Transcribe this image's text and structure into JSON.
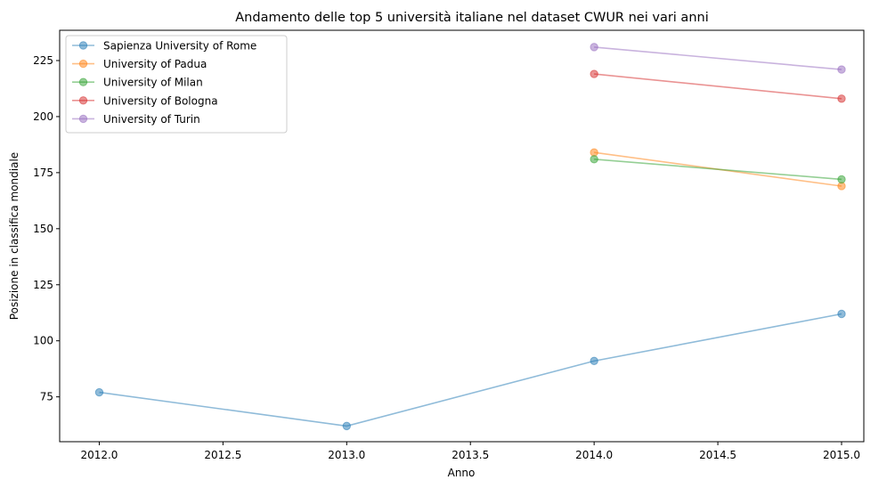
{
  "chart_data": {
    "type": "line",
    "title": "Andamento delle top 5 università italiane nel dataset CWUR nei vari anni",
    "xlabel": "Anno",
    "ylabel": "Posizione in classifica mondiale",
    "xlim": [
      2011.84,
      2015.09
    ],
    "ylim": [
      55.0,
      238.5
    ],
    "xticks": [
      2012.0,
      2012.5,
      2013.0,
      2013.5,
      2014.0,
      2014.5,
      2015.0
    ],
    "xtick_labels": [
      "2012.0",
      "2012.5",
      "2013.0",
      "2013.5",
      "2014.0",
      "2014.5",
      "2015.0"
    ],
    "yticks": [
      75,
      100,
      125,
      150,
      175,
      200,
      225
    ],
    "ytick_labels": [
      "75",
      "100",
      "125",
      "150",
      "175",
      "200",
      "225"
    ],
    "grid": false,
    "legend_position": "top-left",
    "series": [
      {
        "name": "Sapienza University of Rome",
        "color": "#1f77b4",
        "points": [
          [
            2012,
            77
          ],
          [
            2013,
            62
          ],
          [
            2014,
            91
          ],
          [
            2015,
            112
          ]
        ]
      },
      {
        "name": "University of Padua",
        "color": "#ff7f0e",
        "points": [
          [
            2014,
            184
          ],
          [
            2015,
            169
          ]
        ]
      },
      {
        "name": "University of Milan",
        "color": "#2ca02c",
        "points": [
          [
            2014,
            181
          ],
          [
            2015,
            172
          ]
        ]
      },
      {
        "name": "University of Bologna",
        "color": "#d62728",
        "points": [
          [
            2014,
            219
          ],
          [
            2015,
            208
          ]
        ]
      },
      {
        "name": "University of Turin",
        "color": "#9467bd",
        "points": [
          [
            2014,
            231
          ],
          [
            2015,
            221
          ]
        ]
      }
    ]
  }
}
